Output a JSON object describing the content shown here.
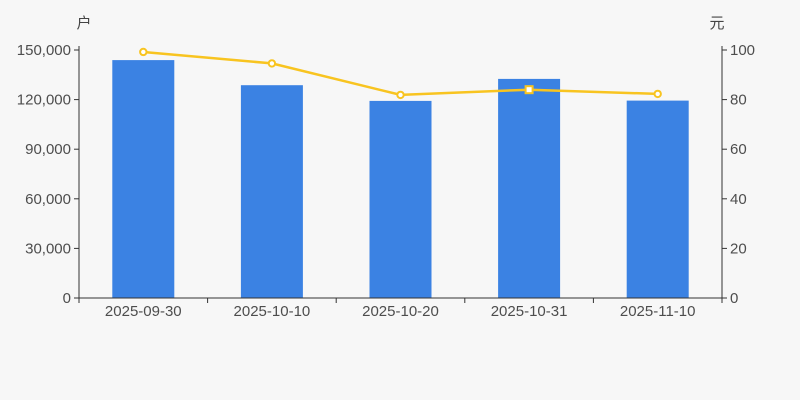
{
  "page": {
    "background": "#f7f7f7"
  },
  "chart_data": {
    "type": "bar",
    "combo": "bar+line-dual-axis",
    "title": "",
    "legend": "none",
    "grid": false,
    "categories": [
      "2025-09-30",
      "2025-10-10",
      "2025-10-20",
      "2025-10-31",
      "2025-11-10"
    ],
    "series": [
      {
        "name": "户",
        "type": "bar",
        "axis": "left",
        "color": "#3b82e3",
        "values": [
          143900,
          128700,
          119200,
          132500,
          119400
        ]
      },
      {
        "name": "元",
        "type": "line",
        "axis": "right",
        "color": "#f8c420",
        "marker_fill": "#ffffff",
        "markers": [
          "circle",
          "circle",
          "circle",
          "square",
          "circle"
        ],
        "values": [
          99.2,
          94.6,
          81.9,
          84.0,
          82.3
        ]
      }
    ],
    "left_axis": {
      "title": "户",
      "min": 0,
      "max": 150000,
      "tick_step": 30000,
      "tick_labels": [
        "0",
        "30,000",
        "60,000",
        "90,000",
        "120,000",
        "150,000"
      ]
    },
    "right_axis": {
      "title": "元",
      "min": 0,
      "max": 100,
      "tick_step": 20,
      "tick_labels": [
        "0",
        "20",
        "40",
        "60",
        "80",
        "100"
      ]
    },
    "axis_color": "#333333",
    "label_color": "#4d4d4d"
  }
}
